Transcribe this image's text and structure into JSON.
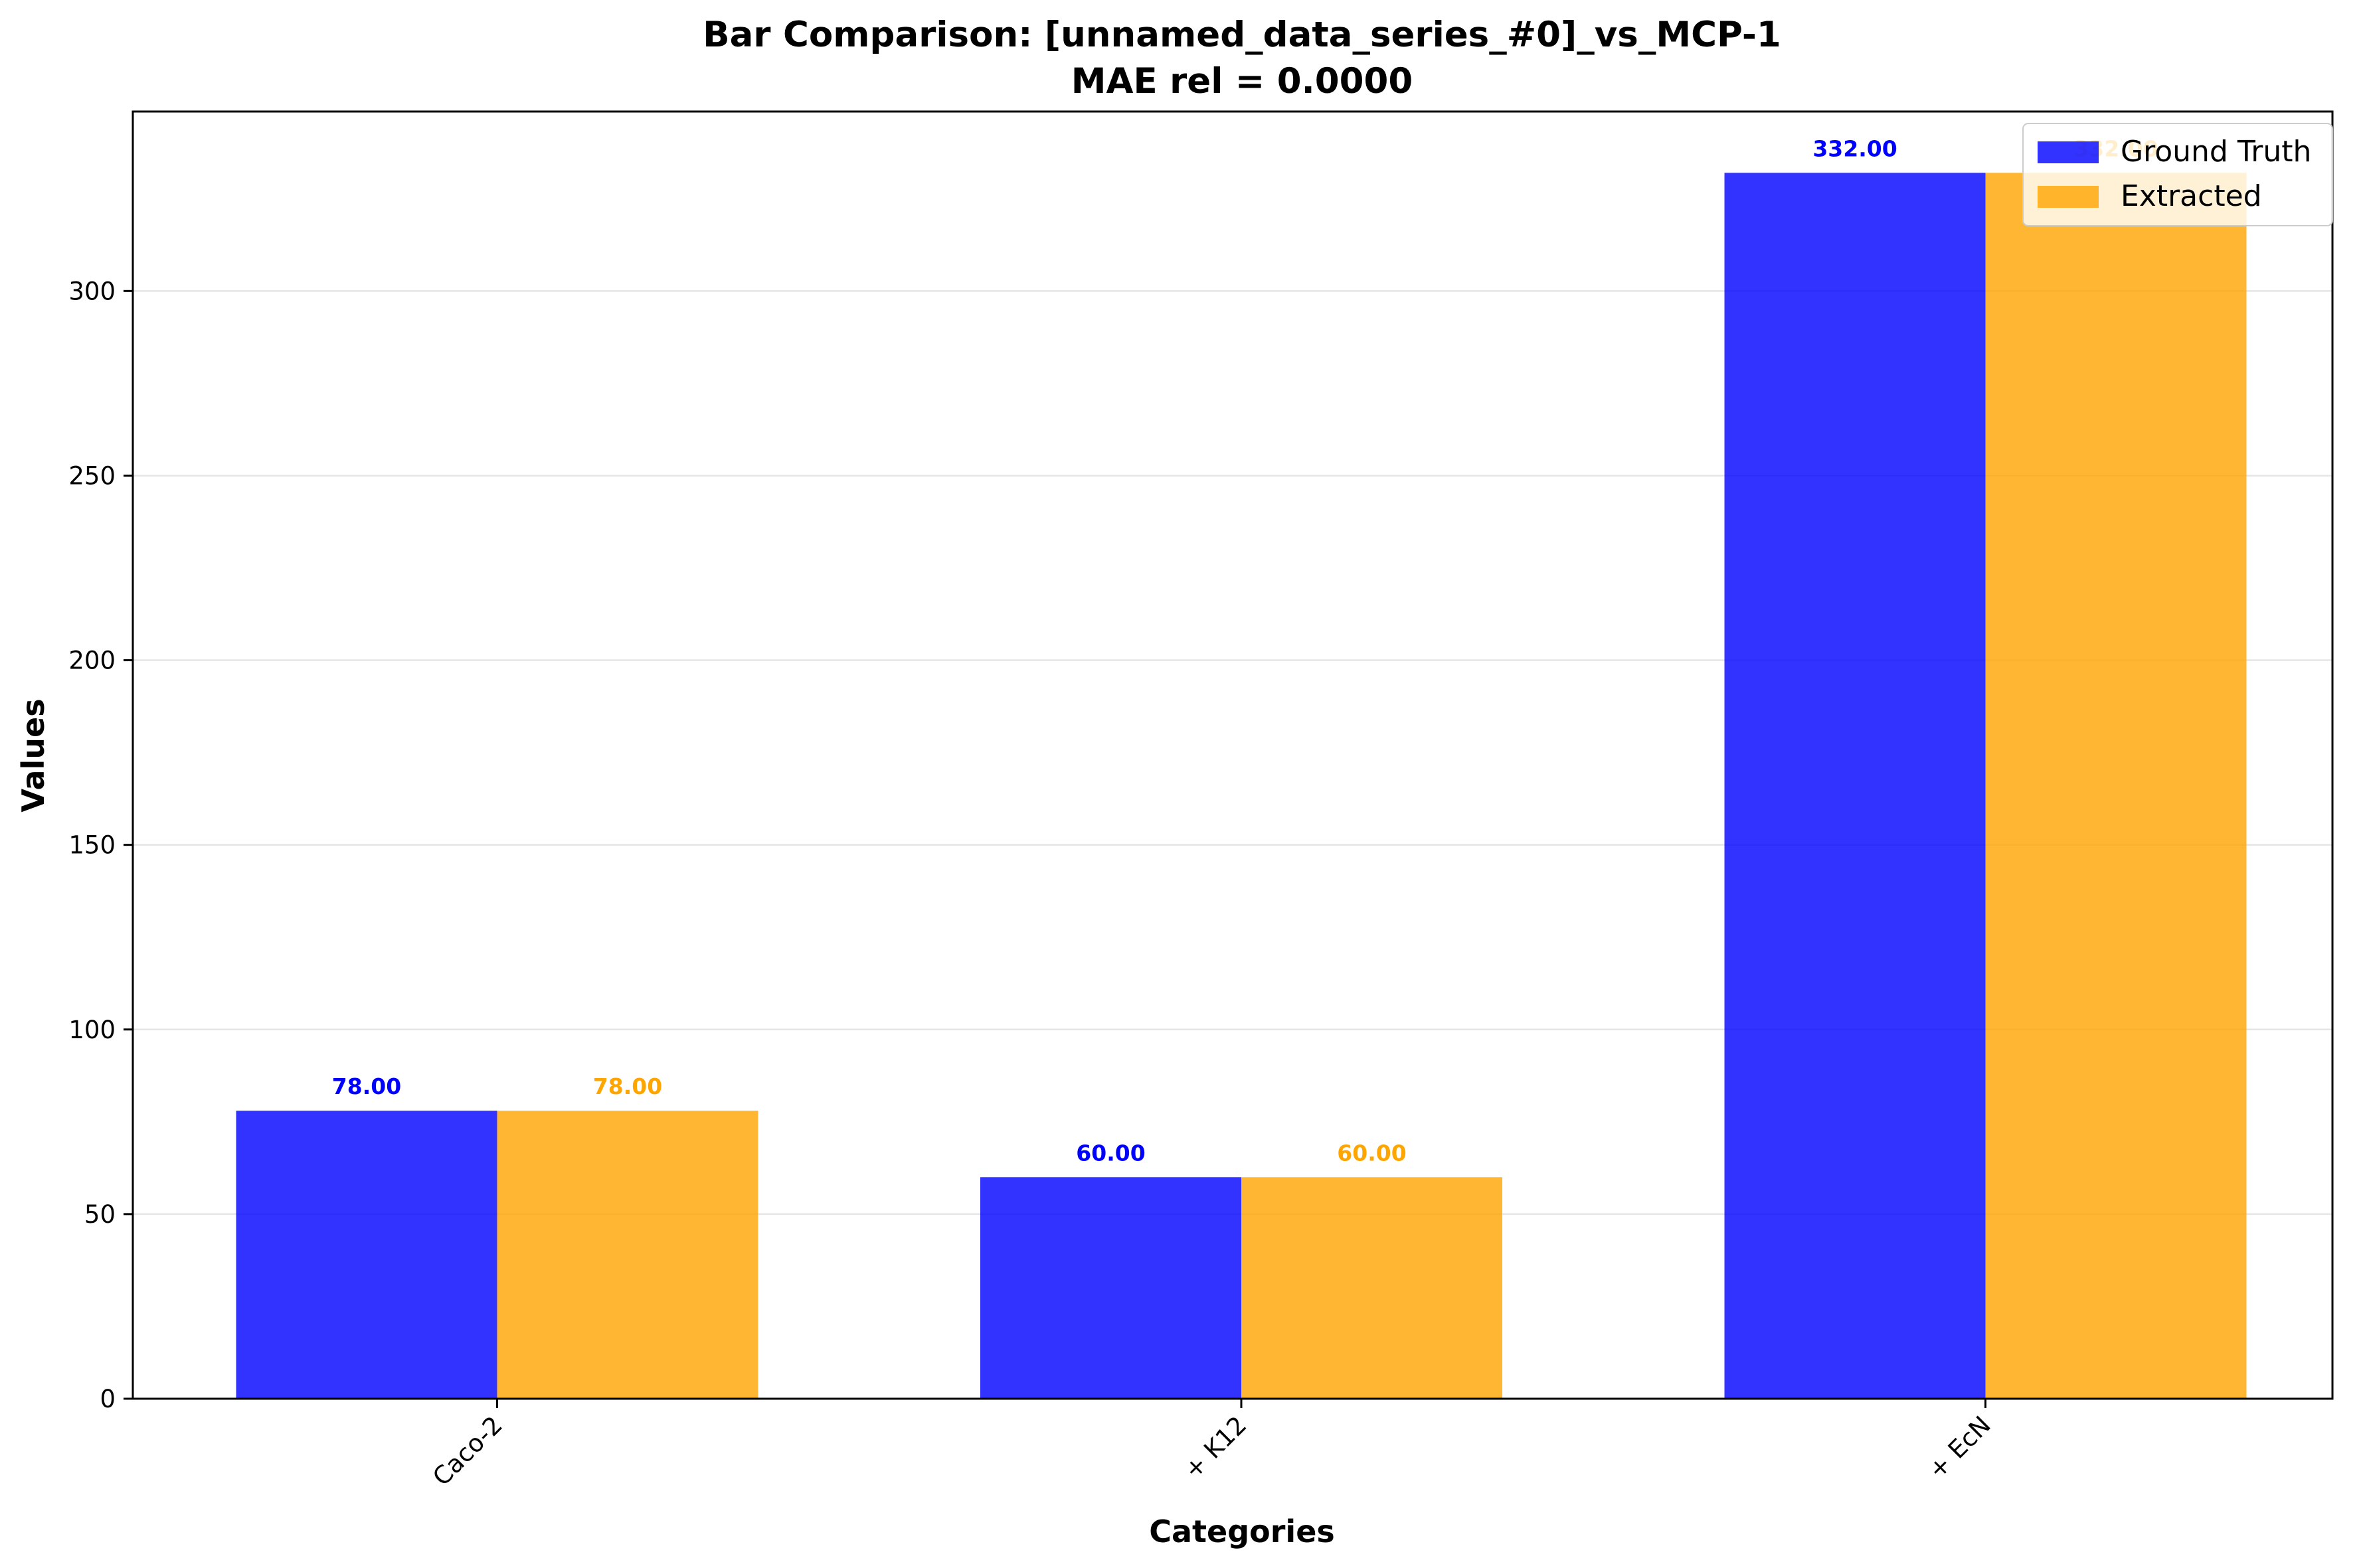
{
  "colors": {
    "ground_truth": "#0000ff",
    "extracted": "#ffa500",
    "ground_truth_label": "#0000ff",
    "extracted_label": "#ffa500",
    "grid": "#e5e5e5",
    "axis": "#000000"
  },
  "chart_data": {
    "type": "bar",
    "title": "Bar Comparison: [unnamed_data_series_#0]_vs_MCP-1",
    "subtitle": "MAE rel = 0.0000",
    "xlabel": "Categories",
    "ylabel": "Values",
    "categories": [
      "Caco-2",
      "+ K12",
      "+ EcN"
    ],
    "series": [
      {
        "name": "Ground Truth",
        "values": [
          78,
          60,
          332
        ],
        "labels": [
          "78.00",
          "60.00",
          "332.00"
        ]
      },
      {
        "name": "Extracted",
        "values": [
          78,
          60,
          332
        ],
        "labels": [
          "78.00",
          "60.00",
          "332.00"
        ]
      }
    ],
    "ylim": [
      0,
      348.6
    ],
    "yticks": [
      0,
      50,
      100,
      150,
      200,
      250,
      300
    ],
    "grid": true,
    "grid_axis": "y",
    "legend_position": "top-right"
  }
}
